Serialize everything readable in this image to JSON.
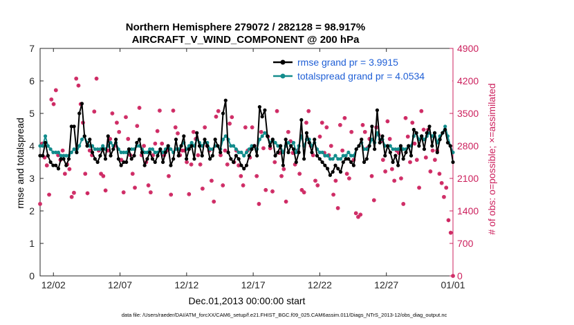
{
  "chart_data": {
    "type": "line",
    "title_line1": "Northern Hemisphere 279072 / 282128 = 98.917%",
    "title_line2": "AIRCRAFT_V_WIND_COMPONENT @ 200 hPa",
    "xlabel": "Dec.01,2013 00:00:00 start",
    "ylabel_left": "rmse and totalspread",
    "ylabel_right": "# of obs: o=possible; ×=assimilated",
    "xlim": [
      1,
      32
    ],
    "ylim_left": [
      0,
      7
    ],
    "ylim_right": [
      0,
      4900
    ],
    "x_ticks": [
      {
        "x": 2,
        "label": "12/02"
      },
      {
        "x": 7,
        "label": "12/07"
      },
      {
        "x": 12,
        "label": "12/12"
      },
      {
        "x": 17,
        "label": "12/17"
      },
      {
        "x": 22,
        "label": "12/22"
      },
      {
        "x": 27,
        "label": "12/27"
      },
      {
        "x": 32,
        "label": "01/01"
      }
    ],
    "y_ticks_left": [
      "0",
      "1",
      "2",
      "3",
      "4",
      "5",
      "6",
      "7"
    ],
    "y_ticks_right": [
      "0",
      "700",
      "1400",
      "2100",
      "2800",
      "3500",
      "4200",
      "4900"
    ],
    "footer": "data file: /Users/raeder/DAI/ATM_forcXX/CAM6_setup/f.e21.FHIST_BGC.f09_025.CAM6assim.011/Diags_NTrS_2013-12/obs_diag_output.nc",
    "colors": {
      "rmse": "#000000",
      "spread": "#138c8c",
      "obs": "#cc1f5c",
      "legend_text": "#1f5fd6"
    },
    "series": [
      {
        "name": "rmse grand pr = 3.9915",
        "key": "rmse",
        "values": [
          3.7,
          3.7,
          4.1,
          3.7,
          3.5,
          3.4,
          3.4,
          3.3,
          3.6,
          3.6,
          3.4,
          3.6,
          4.6,
          4.6,
          3.8,
          5.0,
          5.3,
          4.3,
          4.0,
          4.2,
          3.8,
          3.6,
          3.5,
          3.7,
          3.9,
          3.6,
          4.3,
          3.7,
          3.9,
          4.2,
          3.6,
          3.4,
          3.5,
          3.5,
          3.9,
          3.6,
          3.7,
          4.1,
          4.2,
          3.8,
          3.4,
          3.6,
          3.8,
          3.6,
          3.5,
          3.7,
          3.9,
          3.5,
          3.8,
          4.0,
          3.4,
          3.6,
          4.2,
          3.7,
          4.0,
          4.3,
          3.6,
          3.9,
          4.0,
          3.6,
          4.4,
          4.0,
          3.7,
          4.2,
          4.0,
          3.6,
          3.7,
          4.2,
          4.0,
          3.8,
          5.0,
          5.4,
          3.8,
          3.6,
          3.5,
          3.7,
          3.6,
          3.4,
          3.3,
          3.4,
          3.7,
          3.9,
          4.0,
          3.7,
          5.2,
          4.9,
          5.1,
          4.3,
          4.0,
          4.2,
          3.7,
          3.8,
          4.0,
          3.4,
          4.2,
          3.8,
          4.0,
          3.9,
          3.5,
          3.8,
          4.8,
          3.6,
          4.4,
          4.1,
          3.8,
          4.2,
          3.7,
          3.6,
          3.5,
          3.4,
          3.3,
          3.1,
          3.2,
          3.4,
          3.3,
          3.2,
          3.5,
          3.6,
          3.6,
          3.5,
          3.4,
          3.9,
          4.0,
          4.2,
          3.5,
          3.6,
          4.0,
          4.6,
          3.9,
          5.1,
          4.1,
          4.3,
          3.7,
          4.0,
          3.8,
          3.5,
          3.7,
          3.4,
          4.0,
          3.6,
          3.8,
          4.0,
          3.7,
          4.5,
          4.4,
          4.0,
          4.3,
          3.9,
          4.4,
          4.6,
          4.0,
          4.4,
          3.8,
          4.2,
          4.4,
          4.5,
          4.1,
          4.0,
          3.5
        ],
        "legend_position": "top-right"
      },
      {
        "name": "totalspread grand pr = 4.0534",
        "key": "spread",
        "values": [
          4.0,
          4.0,
          4.3,
          4.0,
          3.9,
          3.8,
          3.8,
          3.8,
          3.7,
          3.7,
          3.7,
          3.7,
          3.8,
          3.9,
          3.8,
          4.0,
          4.2,
          4.3,
          4.1,
          4.0,
          4.0,
          3.9,
          3.9,
          3.9,
          4.0,
          3.9,
          4.0,
          4.1,
          4.0,
          4.1,
          3.9,
          3.8,
          3.8,
          3.8,
          3.9,
          3.9,
          3.9,
          4.0,
          4.0,
          3.9,
          3.8,
          3.8,
          3.9,
          3.9,
          3.8,
          3.8,
          3.9,
          3.8,
          3.9,
          4.0,
          3.9,
          3.8,
          3.9,
          3.9,
          4.0,
          4.1,
          3.9,
          4.0,
          4.1,
          4.0,
          4.2,
          4.1,
          4.0,
          4.1,
          4.1,
          3.9,
          3.9,
          4.0,
          4.0,
          3.9,
          4.2,
          4.3,
          4.2,
          4.0,
          4.0,
          3.9,
          3.8,
          3.8,
          3.7,
          3.8,
          3.9,
          4.0,
          4.0,
          3.9,
          4.2,
          4.3,
          4.4,
          4.3,
          4.1,
          4.2,
          4.1,
          4.0,
          4.0,
          3.8,
          4.0,
          4.1,
          4.0,
          4.1,
          3.8,
          4.0,
          4.3,
          4.0,
          4.2,
          4.2,
          4.0,
          4.1,
          3.9,
          3.8,
          3.8,
          3.7,
          3.7,
          3.6,
          3.6,
          3.7,
          3.6,
          3.6,
          3.7,
          3.7,
          3.8,
          3.7,
          3.7,
          3.9,
          4.0,
          4.1,
          3.9,
          3.9,
          4.0,
          4.2,
          4.1,
          4.4,
          4.2,
          4.2,
          4.0,
          4.0,
          4.0,
          3.9,
          3.9,
          3.9,
          4.0,
          3.9,
          3.9,
          4.0,
          4.0,
          4.3,
          4.4,
          4.2,
          4.3,
          4.2,
          4.3,
          4.4,
          4.3,
          4.4,
          4.1,
          4.3,
          4.4,
          4.6,
          4.3,
          4.0,
          3.8
        ],
        "legend_position": "top-right"
      }
    ],
    "obs_possible": [
      1550,
      2850,
      2550,
      2380,
      1750,
      3800,
      3700,
      4000,
      2600,
      2500,
      2700,
      2200,
      2400,
      2300,
      1700,
      1790,
      4250,
      4100,
      3700,
      3300,
      2200,
      1780,
      2700,
      2600,
      3540,
      4250,
      2700,
      2200,
      2150,
      1840,
      2700,
      2950,
      3500,
      2800,
      3300,
      3100,
      2500,
      1800,
      3420,
      2950,
      2600,
      2200,
      1900,
      3230,
      3620,
      2600,
      2800,
      2450,
      1950,
      1800,
      2600,
      2850,
      3120,
      3560,
      2850,
      2600,
      2700,
      2150,
      1750,
      3560,
      3200,
      3070,
      2600,
      2700,
      2700,
      2450,
      1760,
      2400,
      3100,
      2950,
      2600,
      2400,
      1880,
      3200,
      2800,
      2700,
      2050,
      1600,
      3430,
      3550,
      2600,
      1950,
      2700,
      2400,
      3280,
      3420,
      2450,
      2700,
      2380,
      2150,
      1950,
      3200,
      2700,
      2550,
      3200,
      2800,
      2150,
      1550,
      3100,
      2750,
      1850,
      3000,
      2750,
      1820,
      2450,
      3550,
      2650,
      2150,
      2300,
      1600,
      3100,
      2900,
      2650,
      2400,
      2700,
      2200,
      1850,
      1800,
      3300,
      3550,
      2800,
      2600,
      2050,
      1950,
      3000,
      3300,
      2650,
      3200,
      2600,
      2800,
      1750,
      2050,
      1460,
      3250,
      2700,
      3400,
      2200,
      2100,
      3100,
      2500,
      1350,
      1270,
      1320,
      3250,
      3100,
      2750,
      2950,
      2150,
      1630,
      3200,
      3040,
      2900,
      2500,
      2250,
      3330,
      2950,
      2300,
      2050,
      2700,
      2650,
      2100,
      1550,
      3400,
      3000,
      2450,
      3300,
      2850,
      2500,
      1900,
      3550,
      3150,
      2550,
      3150,
      2250,
      2700,
      2500,
      2700,
      2200,
      2000,
      1700,
      1900,
      1200,
      930,
      0
    ]
  }
}
